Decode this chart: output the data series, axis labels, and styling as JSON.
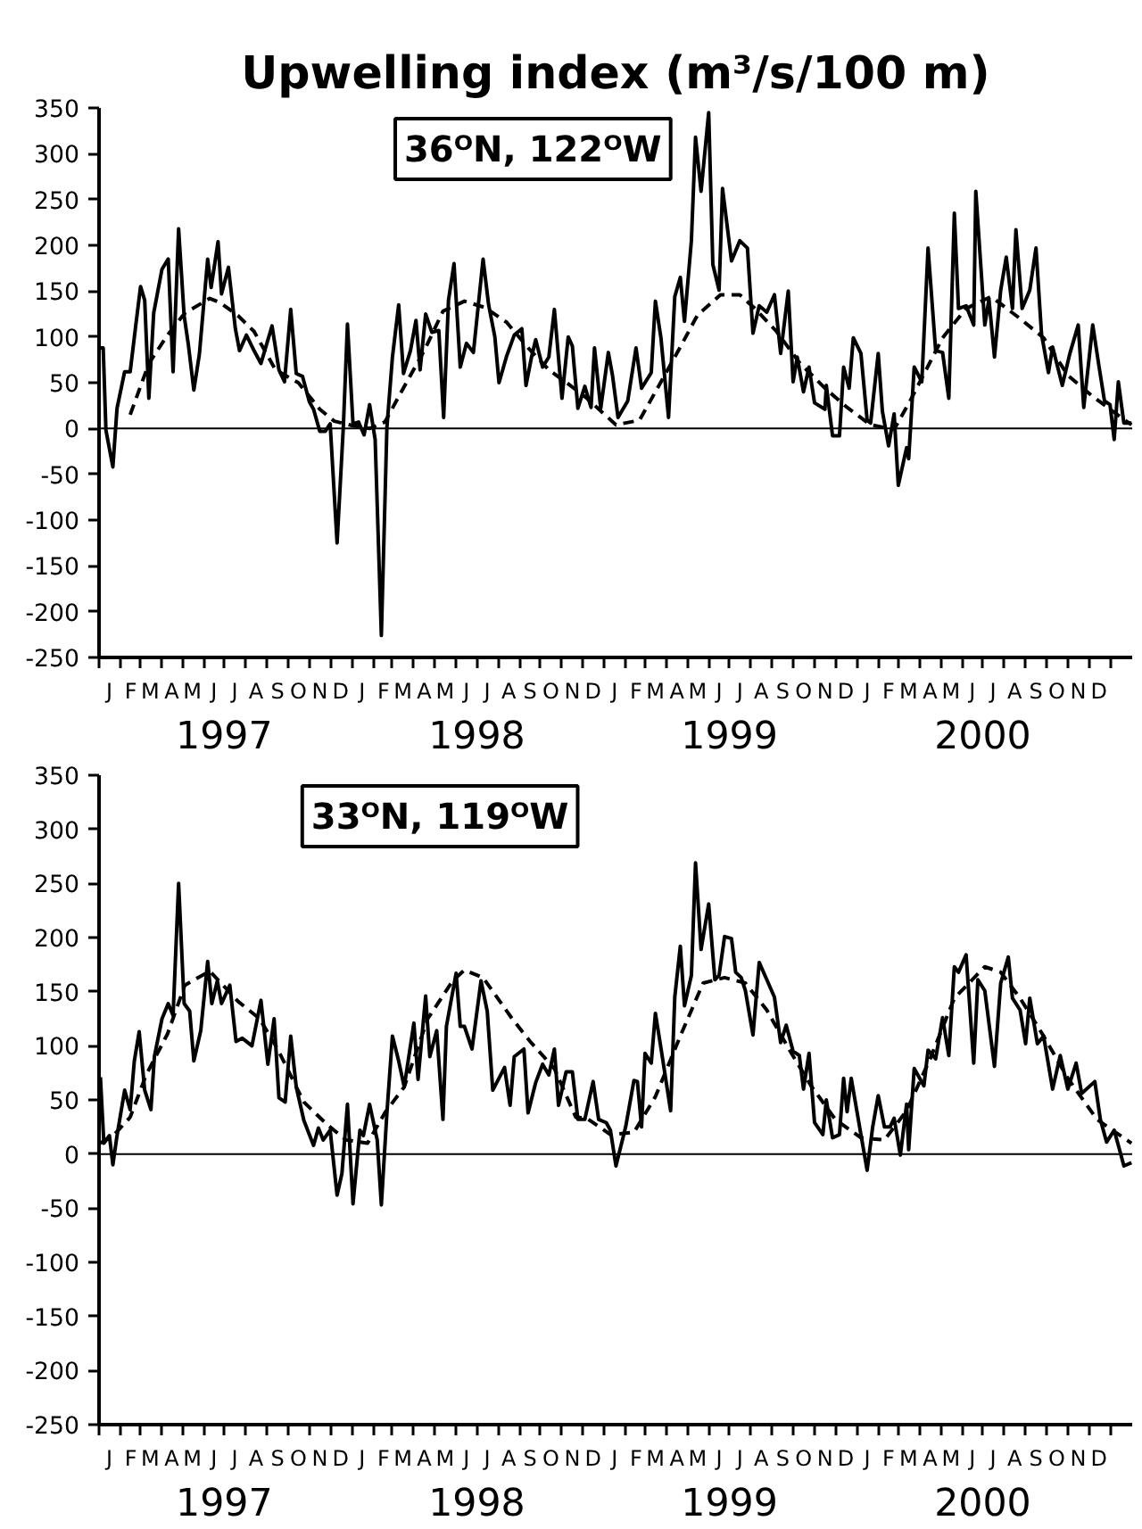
{
  "chart_data": [
    {
      "type": "line",
      "title": "Upwelling index (m³/s/100 m)",
      "subtitle": "36ᴼN, 122ᴼW",
      "xlim": [
        "1997-01-01",
        "2001-02-02"
      ],
      "ylim": [
        -250,
        350
      ],
      "yticks": [
        -250,
        -200,
        -150,
        -100,
        -50,
        0,
        50,
        100,
        150,
        200,
        250,
        300,
        350
      ],
      "xticks": [
        {
          "value": "1997-07-01",
          "label": "1997"
        },
        {
          "value": "1998-07-01",
          "label": "1998"
        },
        {
          "value": "1999-07-01",
          "label": "1999"
        },
        {
          "value": "2000-07-01",
          "label": "2000"
        }
      ],
      "annotations": [
        "J",
        "F",
        "M",
        "A",
        "M",
        "J",
        "J",
        "A",
        "S",
        "O",
        "N",
        "D",
        "J",
        "F",
        "M",
        "A",
        "M",
        "J",
        "J",
        "A",
        "S",
        "O",
        "N",
        "D",
        "J",
        "F",
        "M",
        "A",
        "M",
        "J",
        "J",
        "A",
        "S",
        "O",
        "N",
        "D",
        "J",
        "F",
        "M",
        "A",
        "M",
        "J",
        "J",
        "A",
        "S",
        "O",
        "N",
        "D"
      ],
      "ref_lines": [
        {
          "axis": "y",
          "value": 0,
          "color": "#000000"
        }
      ],
      "grid": false,
      "series": [
        {
          "color": "#000000",
          "line_style": "solid",
          "x": [
            "1997-01-02",
            "1997-01-07",
            "1997-01-11",
            "1997-01-21",
            "1997-01-27",
            "1997-02-07",
            "1997-02-15",
            "1997-02-23",
            "1997-03-02",
            "1997-03-08",
            "1997-03-14",
            "1997-03-21",
            "1997-04-02",
            "1997-04-11",
            "1997-04-18",
            "1997-04-26",
            "1997-05-04",
            "1997-05-10",
            "1997-05-18",
            "1997-05-26",
            "1997-06-07",
            "1997-06-12",
            "1997-06-22",
            "1997-06-27",
            "1997-07-07",
            "1997-07-17",
            "1997-07-23",
            "1997-08-02",
            "1997-08-13",
            "1997-08-23",
            "1997-09-08",
            "1997-09-18",
            "1997-09-26",
            "1997-10-05",
            "1997-10-13",
            "1997-10-22",
            "1997-11-01",
            "1997-11-07",
            "1997-11-16",
            "1997-11-24",
            "1997-12-01",
            "1997-12-11",
            "1997-12-20",
            "1997-12-26",
            "1998-01-03",
            "1998-01-11",
            "1998-01-19",
            "1998-01-27",
            "1998-02-04",
            "1998-02-13",
            "1998-02-21",
            "1998-03-01",
            "1998-03-10",
            "1998-03-17",
            "1998-03-27",
            "1998-04-04",
            "1998-04-10",
            "1998-04-18",
            "1998-04-27",
            "1998-05-07",
            "1998-05-14",
            "1998-05-21",
            "1998-05-29",
            "1998-06-07",
            "1998-06-16",
            "1998-06-26",
            "1998-07-10",
            "1998-07-18",
            "1998-07-27",
            "1998-08-02",
            "1998-08-13",
            "1998-08-24",
            "1998-09-04",
            "1998-09-10",
            "1998-09-18",
            "1998-09-24",
            "1998-10-04",
            "1998-10-13",
            "1998-10-21",
            "1998-11-01",
            "1998-11-10",
            "1998-11-16",
            "1998-11-24",
            "1998-12-04",
            "1998-12-13",
            "1998-12-18",
            "1998-12-27",
            "1999-01-07",
            "1999-01-13",
            "1999-01-21",
            "1999-02-04",
            "1999-02-16",
            "1999-02-24",
            "1999-03-10",
            "1999-03-16",
            "1999-03-24",
            "1999-04-04",
            "1999-04-13",
            "1999-04-21",
            "1999-04-27",
            "1999-05-07",
            "1999-05-13",
            "1999-05-21",
            "1999-06-01",
            "1999-06-07",
            "1999-06-16",
            "1999-06-21",
            "1999-07-04",
            "1999-07-16",
            "1999-07-27",
            "1999-08-04",
            "1999-08-13",
            "1999-08-24",
            "1999-09-04",
            "1999-09-13",
            "1999-09-24",
            "1999-10-01",
            "1999-10-07",
            "1999-10-16",
            "1999-10-24",
            "1999-11-01",
            "1999-11-16",
            "1999-11-18",
            "1999-11-27",
            "1999-12-07",
            "1999-12-13",
            "1999-12-21",
            "1999-12-27",
            "2000-01-07",
            "2000-01-16",
            "2000-01-21",
            "2000-02-01",
            "2000-02-07",
            "2000-02-16",
            "2000-02-24",
            "2000-03-01",
            "2000-03-13",
            "2000-03-16",
            "2000-03-24",
            "2000-04-04",
            "2000-04-13",
            "2000-04-24",
            "2000-05-04",
            "2000-05-13",
            "2000-05-21",
            "2000-05-27",
            "2000-06-07",
            "2000-06-18",
            "2000-06-21",
            "2000-07-04",
            "2000-07-10",
            "2000-07-18",
            "2000-07-27",
            "2000-08-04",
            "2000-08-13",
            "2000-08-18",
            "2000-08-27",
            "2000-09-07",
            "2000-09-16",
            "2000-09-24",
            "2000-10-04",
            "2000-10-10",
            "2000-10-24",
            "2000-11-04",
            "2000-11-16",
            "2000-11-24",
            "2000-12-07",
            "2000-12-16",
            "2000-12-24",
            "2001-01-01",
            "2001-01-07",
            "2001-01-13",
            "2001-01-21",
            "2001-02-01"
          ],
          "values": [
            88,
            88,
            -2,
            -42,
            22,
            62,
            62,
            112,
            155,
            140,
            33,
            126,
            174,
            185,
            62,
            218,
            123,
            92,
            42,
            81,
            185,
            154,
            204,
            147,
            176,
            109,
            85,
            102,
            85,
            71,
            112,
            64,
            51,
            130,
            60,
            57,
            29,
            21,
            -3,
            -3,
            5,
            -125,
            1,
            114,
            5,
            7,
            -7,
            26,
            -12,
            -226,
            1,
            78,
            135,
            60,
            85,
            118,
            64,
            125,
            105,
            107,
            12,
            140,
            180,
            67,
            93,
            83,
            185,
            135,
            100,
            50,
            79,
            102,
            109,
            47,
            78,
            97,
            67,
            78,
            130,
            33,
            100,
            90,
            22,
            46,
            23,
            88,
            22,
            83,
            58,
            12,
            30,
            88,
            44,
            61,
            139,
            99,
            12,
            144,
            165,
            117,
            205,
            318,
            259,
            345,
            179,
            151,
            262,
            183,
            205,
            197,
            104,
            134,
            127,
            146,
            82,
            150,
            51,
            78,
            40,
            67,
            28,
            21,
            47,
            -8,
            -8,
            67,
            44,
            99,
            82,
            9,
            6,
            82,
            19,
            -19,
            16,
            -62,
            -21,
            -33,
            67,
            51,
            197,
            85,
            83,
            33,
            235,
            131,
            134,
            113,
            259,
            113,
            141,
            78,
            151,
            187,
            131,
            217,
            131,
            151,
            197,
            103,
            61,
            89,
            47,
            82,
            113,
            23,
            113,
            68,
            30,
            26,
            -12,
            51,
            6,
            6
          ]
        },
        {
          "color": "#000000",
          "line_style": "dashed",
          "x": [
            "1997-02-15",
            "1997-03-14",
            "1997-04-10",
            "1997-05-05",
            "1997-06-10",
            "1997-06-26",
            "1997-07-21",
            "1997-08-13",
            "1997-09-13",
            "1997-10-16",
            "1997-11-16",
            "1997-12-07",
            "1998-01-03",
            "1998-01-27",
            "1998-02-18",
            "1998-03-16",
            "1998-04-16",
            "1998-05-13",
            "1998-06-13",
            "1998-07-13",
            "1998-08-13",
            "1998-09-13",
            "1998-10-13",
            "1998-11-13",
            "1998-12-07",
            "1999-01-18",
            "1999-02-21",
            "1999-03-16",
            "1999-04-21",
            "1999-05-16",
            "1999-06-18",
            "1999-07-16",
            "1999-08-07",
            "1999-09-07",
            "1999-10-10",
            "1999-11-16",
            "1999-12-18",
            "2000-01-21",
            "2000-02-24",
            "2000-03-18",
            "2000-05-04",
            "2000-06-07",
            "2000-07-13",
            "2000-08-24",
            "2000-09-27",
            "2000-11-01",
            "2000-12-07",
            "2001-01-10",
            "2001-02-01"
          ],
          "values": [
            15,
            71,
            102,
            126,
            142,
            137,
            123,
            106,
            64,
            50,
            21,
            8,
            3,
            0,
            7,
            43,
            85,
            128,
            139,
            132,
            116,
            88,
            64,
            47,
            33,
            4,
            9,
            40,
            89,
            124,
            146,
            146,
            131,
            106,
            72,
            44,
            23,
            4,
            -1,
            30,
            99,
            131,
            144,
            120,
            99,
            58,
            35,
            16,
            4
          ]
        }
      ]
    },
    {
      "type": "line",
      "subtitle": "33ᴼN, 119ᴼW",
      "xlim": [
        "1997-01-01",
        "2001-02-02"
      ],
      "ylim": [
        -250,
        350
      ],
      "yticks": [
        -250,
        -200,
        -150,
        -100,
        -50,
        0,
        50,
        100,
        150,
        200,
        250,
        300,
        350
      ],
      "xticks": [
        {
          "value": "1997-07-01",
          "label": "1997"
        },
        {
          "value": "1998-07-01",
          "label": "1998"
        },
        {
          "value": "1999-07-01",
          "label": "1999"
        },
        {
          "value": "2000-07-01",
          "label": "2000"
        }
      ],
      "annotations": [
        "J",
        "F",
        "M",
        "A",
        "M",
        "J",
        "J",
        "A",
        "S",
        "O",
        "N",
        "D",
        "J",
        "F",
        "M",
        "A",
        "M",
        "J",
        "J",
        "A",
        "S",
        "O",
        "N",
        "D",
        "J",
        "F",
        "M",
        "A",
        "M",
        "J",
        "J",
        "A",
        "S",
        "O",
        "N",
        "D",
        "J",
        "F",
        "M",
        "A",
        "M",
        "J",
        "J",
        "A",
        "S",
        "O",
        "N",
        "D"
      ],
      "ref_lines": [
        {
          "axis": "y",
          "value": 0,
          "color": "#000000"
        }
      ],
      "grid": false,
      "series": [
        {
          "color": "#000000",
          "line_style": "solid",
          "x": [
            "1997-01-03",
            "1997-01-08",
            "1997-01-16",
            "1997-01-21",
            "1997-01-27",
            "1997-02-07",
            "1997-02-15",
            "1997-02-21",
            "1997-02-28",
            "1997-03-08",
            "1997-03-17",
            "1997-03-22",
            "1997-04-02",
            "1997-04-11",
            "1997-04-18",
            "1997-04-26",
            "1997-05-04",
            "1997-05-12",
            "1997-05-18",
            "1997-05-28",
            "1997-06-07",
            "1997-06-13",
            "1997-06-21",
            "1997-06-27",
            "1997-07-09",
            "1997-07-18",
            "1997-07-27",
            "1997-08-10",
            "1997-08-23",
            "1997-09-02",
            "1997-09-11",
            "1997-09-18",
            "1997-09-27",
            "1997-10-05",
            "1997-10-13",
            "1997-10-24",
            "1997-11-07",
            "1997-11-14",
            "1997-11-21",
            "1997-12-01",
            "1997-12-11",
            "1997-12-18",
            "1997-12-26",
            "1998-01-03",
            "1998-01-13",
            "1998-01-18",
            "1998-01-27",
            "1998-02-07",
            "1998-02-13",
            "1998-02-21",
            "1998-03-01",
            "1998-03-10",
            "1998-03-18",
            "1998-04-01",
            "1998-04-07",
            "1998-04-18",
            "1998-04-24",
            "1998-05-04",
            "1998-05-13",
            "1998-05-18",
            "1998-06-01",
            "1998-06-07",
            "1998-06-13",
            "1998-06-24",
            "1998-07-07",
            "1998-07-16",
            "1998-07-24",
            "1998-08-10",
            "1998-08-18",
            "1998-08-24",
            "1998-09-07",
            "1998-09-13",
            "1998-09-24",
            "1998-10-04",
            "1998-10-13",
            "1998-10-21",
            "1998-10-27",
            "1998-11-07",
            "1998-11-16",
            "1998-11-24",
            "1998-12-04",
            "1998-12-16",
            "1998-12-24",
            "1999-01-04",
            "1999-01-10",
            "1999-01-18",
            "1999-02-01",
            "1999-02-13",
            "1999-02-18",
            "1999-02-24",
            "1999-03-01",
            "1999-03-10",
            "1999-03-16",
            "1999-03-24",
            "1999-04-07",
            "1999-04-13",
            "1999-04-21",
            "1999-04-27",
            "1999-05-07",
            "1999-05-13",
            "1999-05-21",
            "1999-06-01",
            "1999-06-10",
            "1999-06-16",
            "1999-06-24",
            "1999-07-04",
            "1999-07-10",
            "1999-07-18",
            "1999-07-24",
            "1999-08-04",
            "1999-08-13",
            "1999-08-24",
            "1999-09-04",
            "1999-09-13",
            "1999-09-21",
            "1999-10-01",
            "1999-10-10",
            "1999-10-16",
            "1999-10-24",
            "1999-11-01",
            "1999-11-13",
            "1999-11-18",
            "1999-11-27",
            "1999-12-07",
            "1999-12-13",
            "1999-12-18",
            "1999-12-24",
            "2000-01-07",
            "2000-01-16",
            "2000-01-24",
            "2000-02-01",
            "2000-02-10",
            "2000-02-18",
            "2000-02-24",
            "2000-03-04",
            "2000-03-13",
            "2000-03-16",
            "2000-03-24",
            "2000-04-07",
            "2000-04-13",
            "2000-04-24",
            "2000-05-04",
            "2000-05-13",
            "2000-05-21",
            "2000-05-27",
            "2000-06-07",
            "2000-06-18",
            "2000-06-24",
            "2000-07-04",
            "2000-07-18",
            "2000-07-27",
            "2000-08-07",
            "2000-08-13",
            "2000-08-24",
            "2000-09-01",
            "2000-09-07",
            "2000-09-18",
            "2000-09-27",
            "2000-10-10",
            "2000-10-21",
            "2000-11-01",
            "2000-11-13",
            "2000-11-21",
            "2000-12-10",
            "2000-12-18",
            "2000-12-27",
            "2001-01-07",
            "2001-01-16",
            "2001-01-21",
            "2001-02-01"
          ],
          "values": [
            71,
            10,
            17,
            -10,
            17,
            59,
            41,
            86,
            113,
            59,
            41,
            90,
            125,
            139,
            128,
            250,
            139,
            132,
            86,
            114,
            178,
            139,
            160,
            139,
            156,
            104,
            107,
            100,
            142,
            83,
            125,
            52,
            48,
            109,
            62,
            31,
            8,
            24,
            13,
            22,
            -38,
            -18,
            46,
            -46,
            22,
            17,
            46,
            13,
            -47,
            38,
            109,
            86,
            62,
            121,
            69,
            146,
            90,
            114,
            32,
            118,
            167,
            118,
            118,
            97,
            160,
            132,
            59,
            80,
            45,
            90,
            97,
            38,
            66,
            83,
            73,
            97,
            45,
            76,
            76,
            32,
            32,
            67,
            32,
            29,
            22,
            -11,
            25,
            68,
            67,
            25,
            93,
            84,
            130,
            98,
            40,
            145,
            192,
            137,
            165,
            269,
            189,
            231,
            161,
            165,
            201,
            199,
            168,
            163,
            151,
            110,
            177,
            161,
            145,
            103,
            119,
            95,
            91,
            60,
            93,
            29,
            18,
            50,
            15,
            18,
            70,
            39,
            70,
            18,
            -15,
            25,
            54,
            25,
            25,
            33,
            -1,
            46,
            4,
            79,
            63,
            96,
            88,
            126,
            91,
            173,
            168,
            184,
            84,
            161,
            151,
            81,
            158,
            182,
            144,
            133,
            102,
            144,
            102,
            109,
            60,
            91,
            60,
            84,
            56,
            67,
            32,
            11,
            22,
            1,
            -11,
            -8
          ]
        },
        {
          "color": "#000000",
          "line_style": "dashed",
          "x": [
            "1997-01-03",
            "1997-01-23",
            "1997-02-15",
            "1997-03-10",
            "1997-04-10",
            "1997-05-05",
            "1997-06-10",
            "1997-07-21",
            "1997-08-21",
            "1997-09-16",
            "1997-10-24",
            "1997-11-27",
            "1997-12-24",
            "1998-01-24",
            "1998-02-18",
            "1998-03-18",
            "1998-04-21",
            "1998-05-27",
            "1998-06-13",
            "1998-07-10",
            "1998-08-21",
            "1998-09-16",
            "1998-10-21",
            "1998-11-21",
            "1998-12-07",
            "1999-01-10",
            "1999-02-13",
            "1999-03-16",
            "1999-04-21",
            "1999-05-24",
            "1999-06-24",
            "1999-07-24",
            "1999-08-24",
            "1999-09-24",
            "1999-10-27",
            "1999-12-01",
            "2000-01-07",
            "2000-02-10",
            "2000-03-13",
            "2000-04-16",
            "2000-05-21",
            "2000-07-04",
            "2000-07-27",
            "2000-08-24",
            "2000-09-27",
            "2000-11-01",
            "2000-12-13",
            "2001-02-01"
          ],
          "values": [
            10,
            18,
            34,
            73,
            111,
            156,
            169,
            141,
            125,
            97,
            48,
            27,
            13,
            10,
            38,
            62,
            125,
            160,
            170,
            163,
            125,
            104,
            79,
            34,
            33,
            18,
            20,
            53,
            109,
            158,
            163,
            158,
            133,
            98,
            63,
            32,
            15,
            13,
            40,
            88,
            144,
            173,
            168,
            144,
            109,
            70,
            32,
            10
          ]
        }
      ]
    }
  ]
}
